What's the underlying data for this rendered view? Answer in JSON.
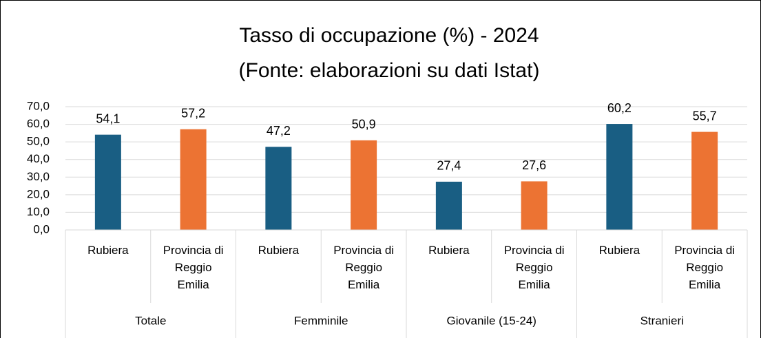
{
  "chart_data": {
    "type": "bar",
    "title": "Tasso di occupazione (%) - 2024",
    "subtitle": "(Fonte: elaborazioni su dati Istat)",
    "categories": [
      "Rubiera",
      "Provincia di Reggio Emilia",
      "Rubiera",
      "Provincia di Reggio Emilia",
      "Rubiera",
      "Provincia di Reggio Emilia",
      "Rubiera",
      "Provincia di Reggio Emilia"
    ],
    "groups": [
      "Totale",
      "Femminile",
      "Giovanile (15-24)",
      "Stranieri"
    ],
    "values": [
      54.1,
      57.2,
      47.2,
      50.9,
      27.4,
      27.6,
      60.2,
      55.7
    ],
    "value_labels": [
      "54,1",
      "57,2",
      "47,2",
      "50,9",
      "27,4",
      "27,6",
      "60,2",
      "55,7"
    ],
    "colors": [
      "#195e83",
      "#ec7333",
      "#195e83",
      "#ec7333",
      "#195e83",
      "#ec7333",
      "#195e83",
      "#ec7333"
    ],
    "ylim": [
      0,
      70
    ],
    "yticks": [
      {
        "value": 0,
        "label": "0,0"
      },
      {
        "value": 10,
        "label": "10,0"
      },
      {
        "value": 20,
        "label": "20,0"
      },
      {
        "value": 30,
        "label": "30,0"
      },
      {
        "value": 40,
        "label": "40,0"
      },
      {
        "value": 50,
        "label": "50,0"
      },
      {
        "value": 60,
        "label": "60,0"
      },
      {
        "value": 70,
        "label": "70,0"
      }
    ],
    "grid": true
  }
}
